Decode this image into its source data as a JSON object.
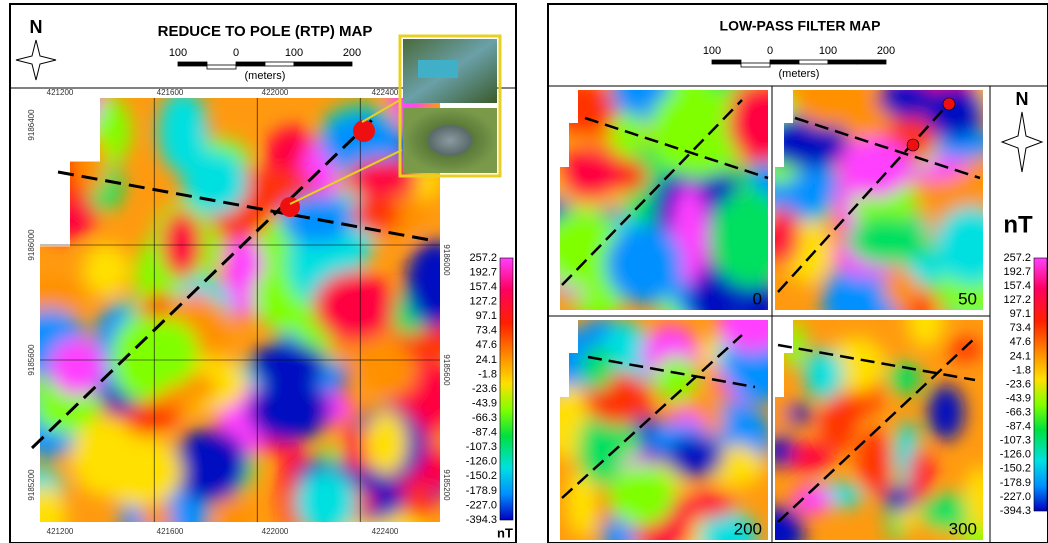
{
  "left_panel": {
    "title": "REDUCE TO POLE (RTP) MAP",
    "north": "N",
    "scale": {
      "ticks": [
        "100",
        "0",
        "100",
        "200"
      ],
      "unit": "(meters)"
    },
    "x_coords": [
      "421200",
      "421600",
      "422000",
      "422400"
    ],
    "y_coords_left": [
      "9186400",
      "9186000",
      "9185600",
      "9185200"
    ],
    "y_coords_right": [
      "9186000",
      "9185600",
      "9185200"
    ],
    "colorbar": {
      "labels": [
        "257.2",
        "192.7",
        "157.4",
        "127.2",
        "97.1",
        "73.4",
        "47.6",
        "24.1",
        "-1.8",
        "-23.6",
        "-43.9",
        "-66.3",
        "-87.4",
        "-107.3",
        "-126.0",
        "-150.2",
        "-178.9",
        "-227.0",
        "-394.3"
      ],
      "unit": "nT"
    }
  },
  "right_panel": {
    "title": "LOW-PASS FILTER MAP",
    "north": "N",
    "scale": {
      "ticks": [
        "100",
        "0",
        "100",
        "200"
      ],
      "unit": "(meters)"
    },
    "panels": [
      "0",
      "50",
      "200",
      "300"
    ],
    "colorbar": {
      "labels": [
        "257.2",
        "192.7",
        "157.4",
        "127.2",
        "97.1",
        "73.4",
        "47.6",
        "24.1",
        "-1.8",
        "-23.6",
        "-43.9",
        "-66.3",
        "-87.4",
        "-107.3",
        "-126.0",
        "-150.2",
        "-178.9",
        "-227.0",
        "-394.3"
      ],
      "unit": "nT"
    }
  }
}
